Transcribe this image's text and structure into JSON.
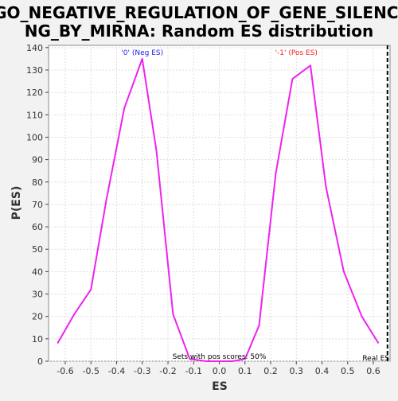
{
  "chart_data": {
    "type": "line",
    "title_line1": "GO_NEGATIVE_REGULATION_OF_GENE_SILENCI",
    "title_line2": "NG_BY_MIRNA: Random ES distribution",
    "xlabel": "ES",
    "ylabel": "P(ES)",
    "xlim": [
      -0.665,
      0.665
    ],
    "ylim": [
      0,
      141
    ],
    "x_ticks": [
      -0.6,
      -0.5,
      -0.4,
      -0.3,
      -0.2,
      -0.1,
      0.0,
      0.1,
      0.2,
      0.3,
      0.4,
      0.5,
      0.6
    ],
    "x_tick_labels": [
      "-0.6",
      "-0.5",
      "-0.4",
      "-0.3",
      "-0.2",
      "-0.1",
      "0.0",
      "0.1",
      "0.2",
      "0.3",
      "0.4",
      "0.5",
      "0.6"
    ],
    "y_ticks": [
      0,
      10,
      20,
      30,
      40,
      50,
      60,
      70,
      80,
      90,
      100,
      110,
      120,
      130,
      140
    ],
    "y_tick_labels": [
      "0",
      "10",
      "20",
      "30",
      "40",
      "50",
      "60",
      "70",
      "80",
      "90",
      "100",
      "110",
      "120",
      "130",
      "140"
    ],
    "grid": true,
    "series": [
      {
        "color": "#ee22ee",
        "x": [
          -0.63,
          -0.565,
          -0.5,
          -0.44,
          -0.37,
          -0.3,
          -0.245,
          -0.18,
          -0.115,
          -0.05,
          0.0,
          0.05,
          0.1,
          0.155,
          0.22,
          0.285,
          0.355,
          0.415,
          0.485,
          0.555,
          0.62
        ],
        "y": [
          8,
          21,
          32,
          72,
          113,
          135,
          94,
          21,
          1,
          0,
          0,
          0,
          1,
          16,
          84,
          126,
          132,
          78,
          40,
          20,
          8
        ]
      }
    ],
    "annotations": {
      "neg_label": "'0' (Neg ES)",
      "neg_color": "#2222ee",
      "pos_label": "'-1' (Pos ES)",
      "pos_color": "#ee2222",
      "pos_scores_text": "Sets with pos scores: 50%",
      "real_es_label": "Real ES"
    },
    "real_es": 0.655
  }
}
